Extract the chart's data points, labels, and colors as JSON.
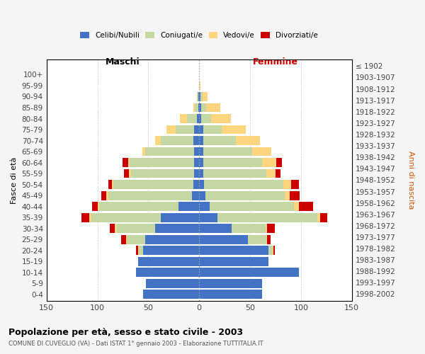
{
  "age_groups": [
    "0-4",
    "5-9",
    "10-14",
    "15-19",
    "20-24",
    "25-29",
    "30-34",
    "35-39",
    "40-44",
    "45-49",
    "50-54",
    "55-59",
    "60-64",
    "65-69",
    "70-74",
    "75-79",
    "80-84",
    "85-89",
    "90-94",
    "95-99",
    "100+"
  ],
  "birth_years": [
    "1998-2002",
    "1993-1997",
    "1988-1992",
    "1983-1987",
    "1978-1982",
    "1973-1977",
    "1968-1972",
    "1963-1967",
    "1958-1962",
    "1953-1957",
    "1948-1952",
    "1943-1947",
    "1938-1942",
    "1933-1937",
    "1928-1932",
    "1923-1927",
    "1918-1922",
    "1913-1917",
    "1908-1912",
    "1903-1907",
    "≤ 1902"
  ],
  "males_celibi": [
    55,
    52,
    62,
    60,
    55,
    53,
    43,
    38,
    20,
    7,
    6,
    5,
    5,
    5,
    6,
    5,
    2,
    1,
    1,
    0,
    0
  ],
  "males_coniugati": [
    0,
    0,
    0,
    0,
    4,
    18,
    38,
    68,
    78,
    82,
    78,
    62,
    63,
    48,
    32,
    18,
    10,
    3,
    1,
    0,
    0
  ],
  "males_vedovi": [
    0,
    0,
    0,
    0,
    1,
    1,
    2,
    2,
    2,
    2,
    2,
    2,
    2,
    3,
    5,
    9,
    7,
    2,
    0,
    0,
    0
  ],
  "males_divorziati": [
    0,
    0,
    0,
    0,
    2,
    5,
    5,
    8,
    5,
    5,
    3,
    5,
    5,
    0,
    0,
    0,
    0,
    0,
    0,
    0,
    0
  ],
  "females_celibi": [
    62,
    62,
    98,
    68,
    68,
    48,
    32,
    18,
    10,
    6,
    5,
    4,
    4,
    4,
    4,
    4,
    2,
    2,
    1,
    0,
    0
  ],
  "females_coniugati": [
    0,
    0,
    0,
    0,
    4,
    18,
    33,
    98,
    83,
    78,
    78,
    62,
    58,
    48,
    32,
    18,
    10,
    5,
    2,
    0,
    0
  ],
  "females_vedovi": [
    0,
    0,
    0,
    0,
    1,
    1,
    2,
    3,
    5,
    5,
    7,
    9,
    14,
    19,
    24,
    24,
    19,
    14,
    5,
    1,
    0
  ],
  "females_divorziati": [
    0,
    0,
    0,
    0,
    1,
    3,
    7,
    7,
    14,
    10,
    8,
    5,
    5,
    0,
    0,
    0,
    0,
    0,
    0,
    0,
    0
  ],
  "color_celibi": "#4472C4",
  "color_coniugati": "#c5d8a4",
  "color_vedovi": "#FFD580",
  "color_divorziati": "#CC0000",
  "xlim": 150,
  "title": "Popolazione per età, sesso e stato civile - 2003",
  "subtitle": "COMUNE DI CUVEGLIO (VA) - Dati ISTAT 1° gennaio 2003 - Elaborazione TUTTITALIA.IT",
  "label_maschi": "Maschi",
  "label_femmine": "Femmine",
  "label_fasce": "Fasce di età",
  "label_anni": "Anni di nascita",
  "legend_labels": [
    "Celibi/Nubili",
    "Coniugati/e",
    "Vedovi/e",
    "Divorziati/e"
  ],
  "bg_color": "#f5f5f5",
  "plot_bg": "#ffffff"
}
